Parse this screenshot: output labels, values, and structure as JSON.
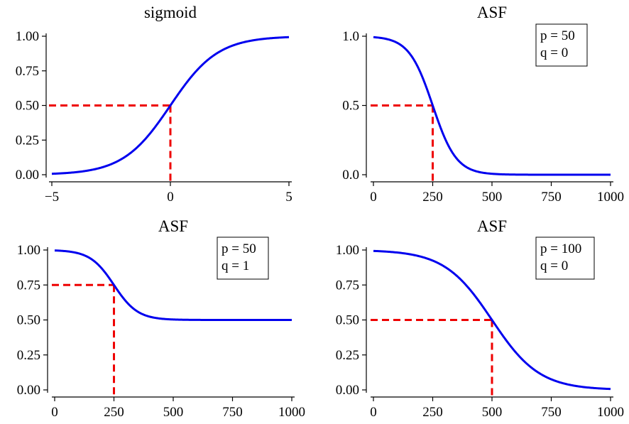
{
  "colors": {
    "curve": "#0000ee",
    "reference": "#ee0000",
    "axis": "#000000"
  },
  "chart_data": [
    {
      "type": "line",
      "title": "sigmoid",
      "function": "sigmoid",
      "xlim": [
        -5,
        5
      ],
      "ylim": [
        0,
        1
      ],
      "xticks": [
        -5,
        0,
        5
      ],
      "xtick_labels": [
        "−5",
        "0",
        "5"
      ],
      "yticks": [
        0,
        0.25,
        0.5,
        0.75,
        1
      ],
      "ytick_labels": [
        "0.00",
        "0.25",
        "0.50",
        "0.75",
        "1.00"
      ],
      "legend": null,
      "reference_point": {
        "x": 0,
        "y": 0.5
      }
    },
    {
      "type": "line",
      "title": "ASF",
      "function": "asf",
      "params": {
        "p": 50,
        "q": 0,
        "center": 250
      },
      "xlim": [
        0,
        1000
      ],
      "ylim": [
        0,
        1
      ],
      "xticks": [
        0,
        250,
        500,
        750,
        1000
      ],
      "xtick_labels": [
        "0",
        "250",
        "500",
        "750",
        "1000"
      ],
      "yticks": [
        0,
        0.5,
        1
      ],
      "ytick_labels": [
        "0.0",
        "0.5",
        "1.0"
      ],
      "legend": [
        "p = 50",
        "q = 0"
      ],
      "reference_point": {
        "x": 250,
        "y": 0.5
      }
    },
    {
      "type": "line",
      "title": "ASF",
      "function": "asf",
      "params": {
        "p": 50,
        "q": 1,
        "center": 250
      },
      "xlim": [
        0,
        1000
      ],
      "ylim": [
        0,
        1
      ],
      "xticks": [
        0,
        250,
        500,
        750,
        1000
      ],
      "xtick_labels": [
        "0",
        "250",
        "500",
        "750",
        "1000"
      ],
      "yticks": [
        0,
        0.25,
        0.5,
        0.75,
        1
      ],
      "ytick_labels": [
        "0.00",
        "0.25",
        "0.50",
        "0.75",
        "1.00"
      ],
      "legend": [
        "p = 50",
        "q = 1"
      ],
      "reference_point": {
        "x": 250,
        "y": 0.75
      }
    },
    {
      "type": "line",
      "title": "ASF",
      "function": "asf",
      "params": {
        "p": 100,
        "q": 0,
        "center": 500
      },
      "xlim": [
        0,
        1000
      ],
      "ylim": [
        0,
        1
      ],
      "xticks": [
        0,
        250,
        500,
        750,
        1000
      ],
      "xtick_labels": [
        "0",
        "250",
        "500",
        "750",
        "1000"
      ],
      "yticks": [
        0,
        0.25,
        0.5,
        0.75,
        1
      ],
      "ytick_labels": [
        "0.00",
        "0.25",
        "0.50",
        "0.75",
        "1.00"
      ],
      "legend": [
        "p = 100",
        "q = 0"
      ],
      "reference_point": {
        "x": 500,
        "y": 0.5
      }
    }
  ]
}
